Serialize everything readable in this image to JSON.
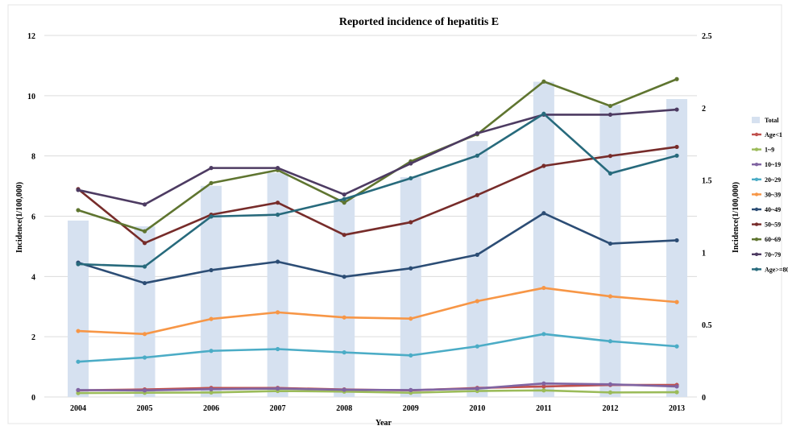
{
  "chart_data": {
    "type": "bar",
    "title": "Reported incidence of hepatitis E",
    "xlabel": "Year",
    "ylabel": "Incidence(1/100,000)",
    "ylabel_right": "Incidence(1/100,000)",
    "categories": [
      "2004",
      "2005",
      "2006",
      "2007",
      "2008",
      "2009",
      "2010",
      "2011",
      "2012",
      "2013"
    ],
    "ylim": [
      0,
      12
    ],
    "ylim_right": [
      0,
      2.5
    ],
    "yticks": [
      "0",
      "2",
      "4",
      "6",
      "8",
      "10",
      "12"
    ],
    "yticks_right": [
      "0",
      "0.5",
      "1",
      "1.5",
      "2",
      "2.5"
    ],
    "grid": true,
    "legend_position": "right",
    "bar_series": {
      "name": "Total",
      "axis": "right",
      "color": "#d6e1f0",
      "values": [
        1.22,
        1.18,
        1.46,
        1.55,
        1.37,
        1.52,
        1.77,
        2.18,
        2.02,
        2.06
      ]
    },
    "series": [
      {
        "name": "Age<1",
        "color": "#c0504d",
        "values": [
          0.22,
          0.25,
          0.3,
          0.3,
          0.25,
          0.22,
          0.3,
          0.35,
          0.4,
          0.4
        ]
      },
      {
        "name": "1~9",
        "color": "#9bbb59",
        "values": [
          0.13,
          0.14,
          0.15,
          0.2,
          0.18,
          0.14,
          0.2,
          0.22,
          0.15,
          0.16
        ]
      },
      {
        "name": "10~19",
        "color": "#8064a2",
        "values": [
          0.23,
          0.22,
          0.26,
          0.28,
          0.24,
          0.23,
          0.28,
          0.45,
          0.42,
          0.35
        ]
      },
      {
        "name": "20~29",
        "color": "#4bacc6",
        "values": [
          1.17,
          1.31,
          1.53,
          1.59,
          1.48,
          1.38,
          1.68,
          2.09,
          1.85,
          1.68
        ]
      },
      {
        "name": "30~39",
        "color": "#f79646",
        "values": [
          2.19,
          2.09,
          2.59,
          2.81,
          2.64,
          2.6,
          3.18,
          3.62,
          3.34,
          3.15
        ]
      },
      {
        "name": "40~49",
        "color": "#2c4d75",
        "values": [
          4.46,
          3.78,
          4.21,
          4.49,
          3.99,
          4.27,
          4.72,
          6.1,
          5.09,
          5.2
        ]
      },
      {
        "name": "50~59",
        "color": "#772c2a",
        "values": [
          6.9,
          5.11,
          6.05,
          6.45,
          5.38,
          5.8,
          6.7,
          7.67,
          8.0,
          8.3
        ]
      },
      {
        "name": "60~69",
        "color": "#5f7530",
        "values": [
          6.2,
          5.5,
          7.1,
          7.53,
          6.45,
          7.82,
          8.72,
          10.47,
          9.66,
          10.55
        ]
      },
      {
        "name": "70~79",
        "color": "#4d3b62",
        "values": [
          6.87,
          6.39,
          7.6,
          7.6,
          6.72,
          7.75,
          8.75,
          9.37,
          9.37,
          9.54
        ]
      },
      {
        "name": "Age>=80",
        "color": "#276a7c",
        "values": [
          4.41,
          4.33,
          5.99,
          6.05,
          6.57,
          7.26,
          8.01,
          9.4,
          7.42,
          8.01
        ]
      }
    ]
  }
}
